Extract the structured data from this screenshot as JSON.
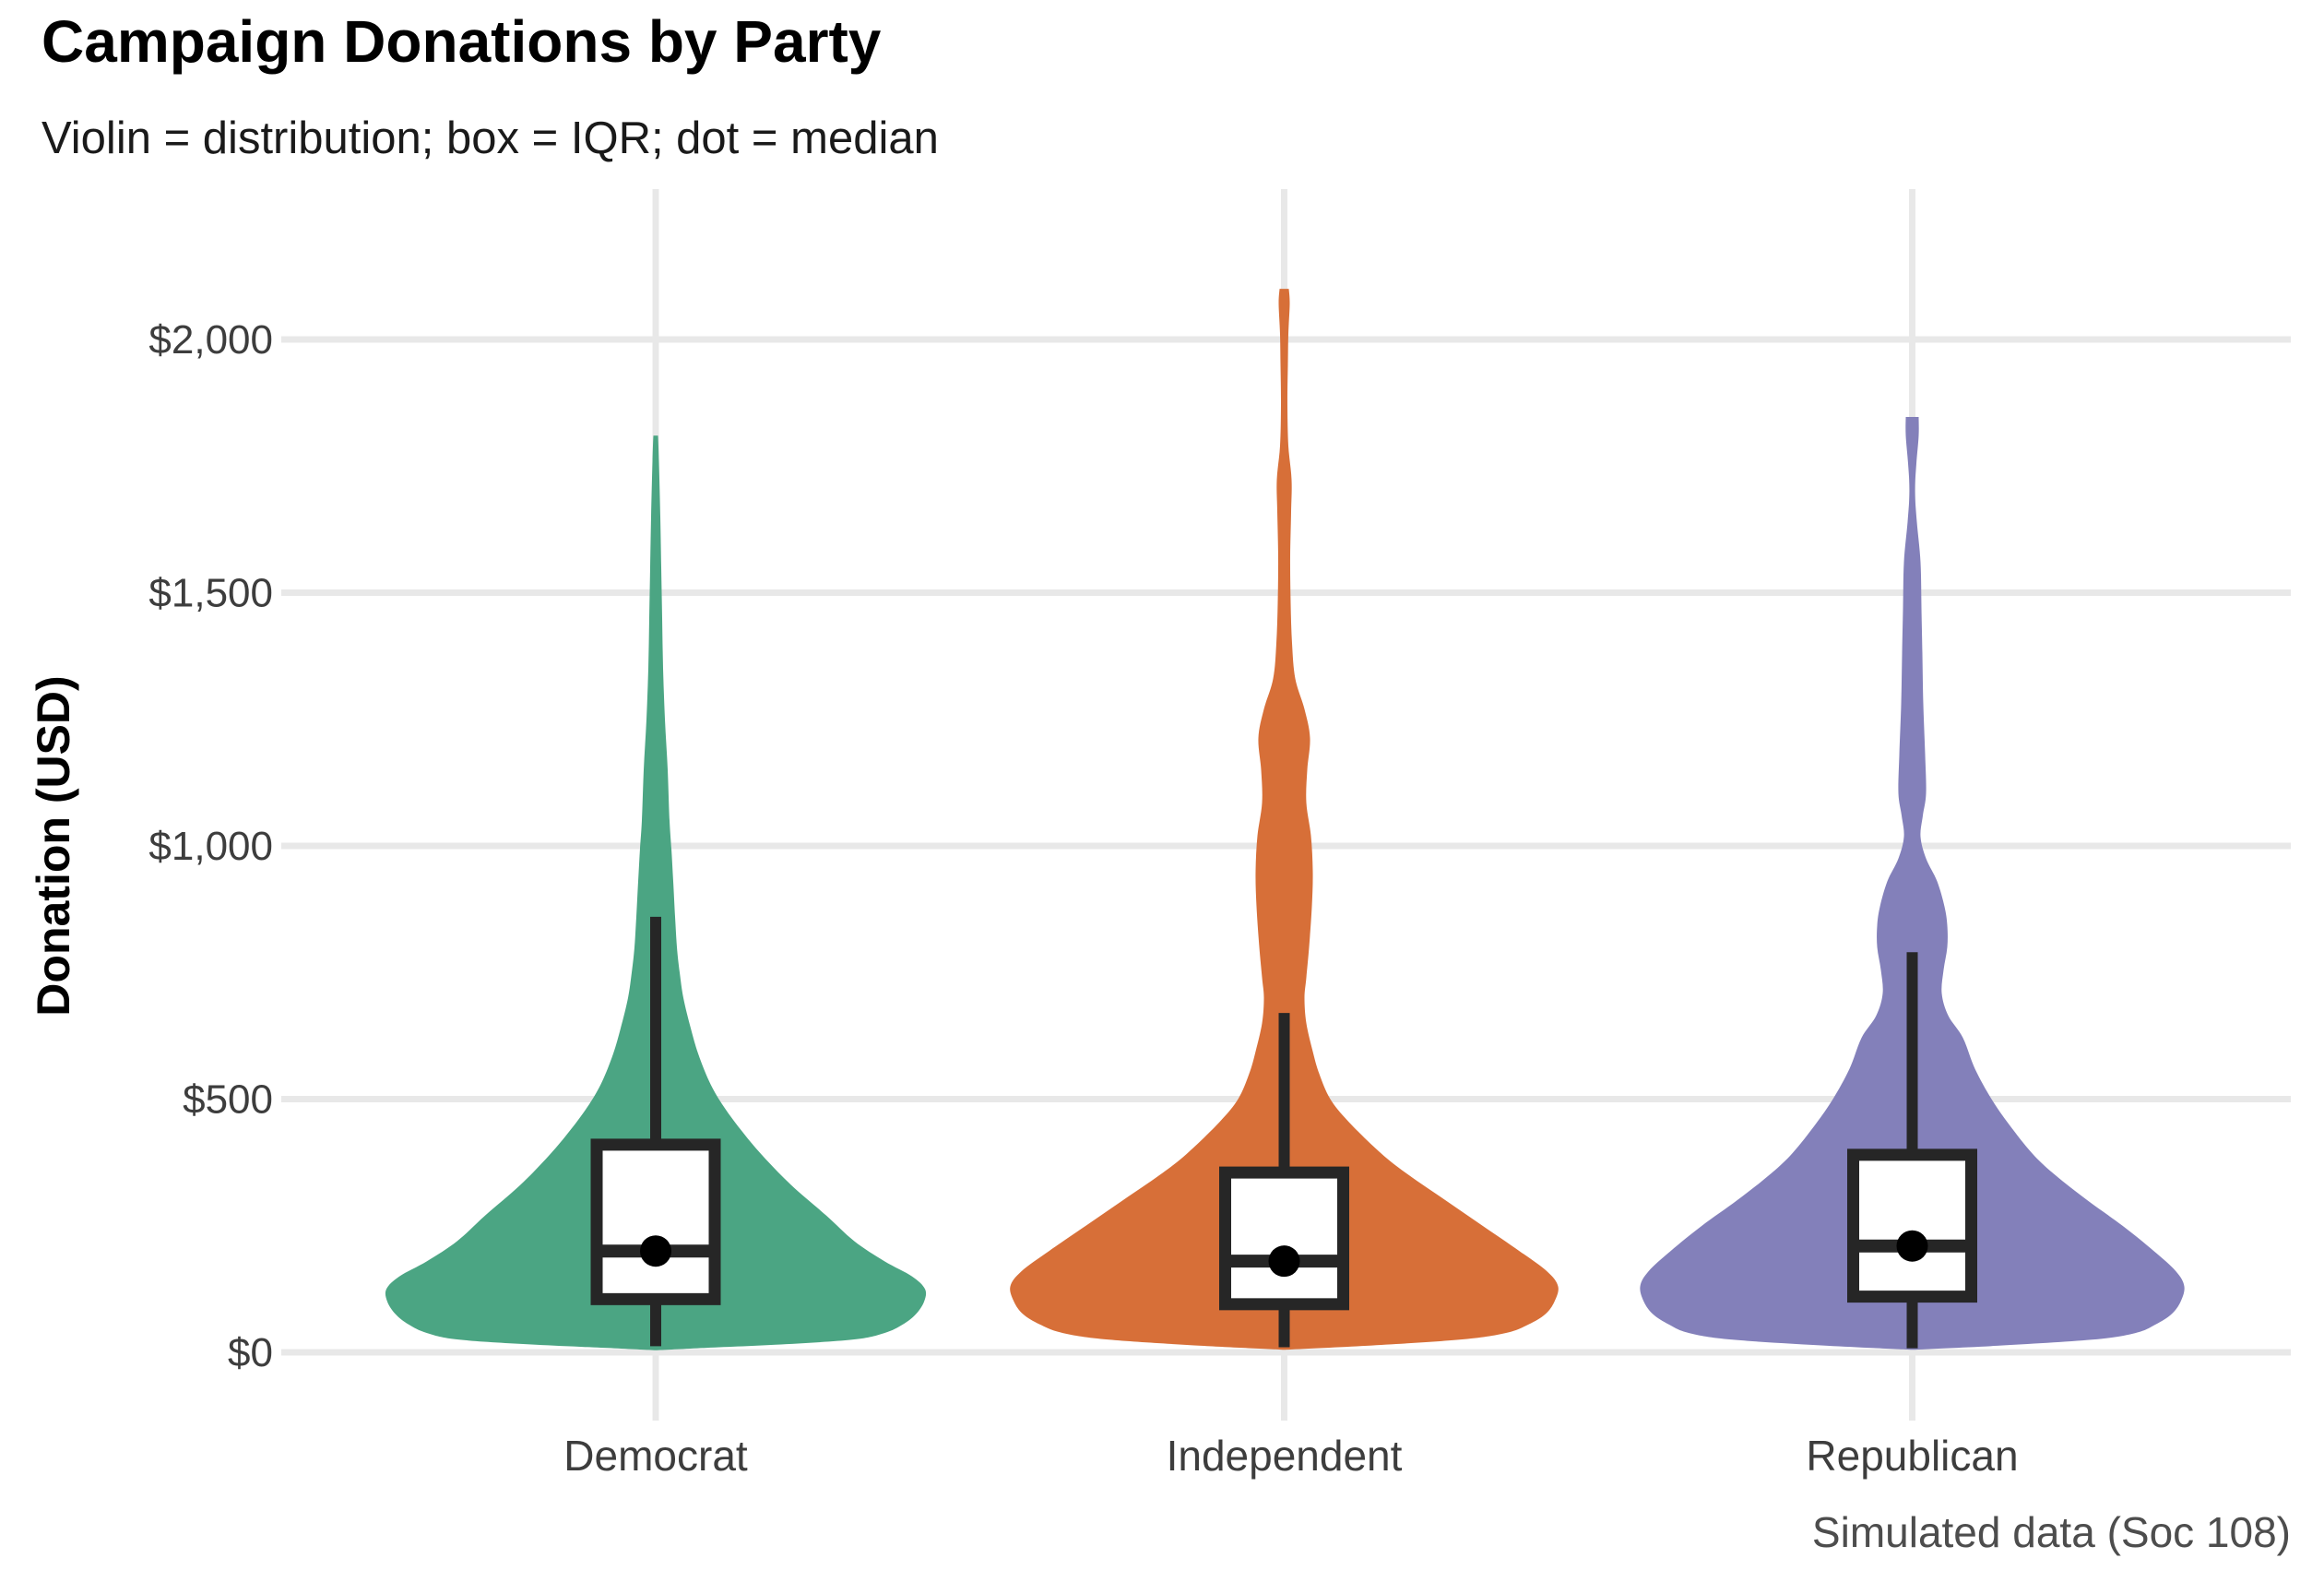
{
  "chart_data": {
    "type": "violin",
    "title": "Campaign Donations by Party",
    "subtitle": "Violin = distribution; box = IQR; dot = median",
    "caption": "Simulated data (Soc 108)",
    "xlabel": "",
    "ylabel": "Donation (USD)",
    "ylim": [
      0,
      2150
    ],
    "grid": "major gridlines only, light gray, no axis lines or tick marks",
    "legend": "none",
    "y_ticks": [
      {
        "value": 0,
        "label": "$0"
      },
      {
        "value": 500,
        "label": "$500"
      },
      {
        "value": 1000,
        "label": "$1,000"
      },
      {
        "value": 1500,
        "label": "$1,500"
      },
      {
        "value": 2000,
        "label": "$2,000"
      }
    ],
    "categories": [
      "Democrat",
      "Independent",
      "Republican"
    ],
    "colors": {
      "grid": "#e8e8e8",
      "box_stroke": "#262626",
      "box_fill": "#ffffff",
      "median_dot": "#000000",
      "tick_text": "#3d3d3d"
    },
    "profile_units": "[donation_usd, violin_half_width_px]",
    "series": [
      {
        "name": "Democrat",
        "color": "#4BA583",
        "stats": {
          "median": 200,
          "q1": 105,
          "q3": 410,
          "whisker_low": 12,
          "whisker_high": 860,
          "violin_min": 4,
          "violin_max": 1810
        },
        "profile": [
          [
            1810,
            2.5
          ],
          [
            1760,
            3.5
          ],
          [
            1650,
            5
          ],
          [
            1550,
            6
          ],
          [
            1450,
            7
          ],
          [
            1350,
            8
          ],
          [
            1250,
            10
          ],
          [
            1150,
            13
          ],
          [
            1050,
            15
          ],
          [
            995,
            17
          ],
          [
            930,
            19
          ],
          [
            860,
            21
          ],
          [
            800,
            23
          ],
          [
            750,
            26
          ],
          [
            700,
            30
          ],
          [
            640,
            38
          ],
          [
            590,
            46
          ],
          [
            535,
            58
          ],
          [
            490,
            72
          ],
          [
            440,
            92
          ],
          [
            390,
            115
          ],
          [
            330,
            147
          ],
          [
            270,
            185
          ],
          [
            220,
            215
          ],
          [
            180,
            248
          ],
          [
            150,
            278
          ],
          [
            125,
            292
          ],
          [
            100,
            291
          ],
          [
            75,
            282
          ],
          [
            55,
            268
          ],
          [
            38,
            248
          ],
          [
            25,
            213
          ],
          [
            15,
            130
          ],
          [
            8,
            45
          ],
          [
            4,
            0
          ]
        ]
      },
      {
        "name": "Independent",
        "color": "#D76F38",
        "stats": {
          "median": 180,
          "q1": 95,
          "q3": 355,
          "whisker_low": 10,
          "whisker_high": 670,
          "violin_min": 5,
          "violin_max": 2100
        },
        "profile": [
          [
            2100,
            5
          ],
          [
            2070,
            6
          ],
          [
            2010,
            4.5
          ],
          [
            1950,
            4
          ],
          [
            1870,
            3.5
          ],
          [
            1790,
            4.5
          ],
          [
            1723,
            8
          ],
          [
            1660,
            7.5
          ],
          [
            1570,
            6.5
          ],
          [
            1480,
            7
          ],
          [
            1400,
            8.5
          ],
          [
            1330,
            12
          ],
          [
            1270,
            22
          ],
          [
            1213,
            28
          ],
          [
            1150,
            25
          ],
          [
            1085,
            24
          ],
          [
            1020,
            29
          ],
          [
            950,
            31
          ],
          [
            880,
            30
          ],
          [
            800,
            27
          ],
          [
            740,
            24
          ],
          [
            700,
            22
          ],
          [
            650,
            24
          ],
          [
            594,
            31
          ],
          [
            550,
            38
          ],
          [
            500,
            50
          ],
          [
            455,
            70
          ],
          [
            393,
            105
          ],
          [
            350,
            135
          ],
          [
            300,
            175
          ],
          [
            250,
            215
          ],
          [
            200,
            255
          ],
          [
            160,
            285
          ],
          [
            130,
            297
          ],
          [
            100,
            293
          ],
          [
            75,
            283
          ],
          [
            55,
            265
          ],
          [
            38,
            240
          ],
          [
            25,
            190
          ],
          [
            13,
            90
          ],
          [
            5,
            0
          ]
        ]
      },
      {
        "name": "Republican",
        "color": "#8380BA",
        "stats": {
          "median": 210,
          "q1": 110,
          "q3": 390,
          "whisker_low": 8,
          "whisker_high": 790,
          "violin_min": 5,
          "violin_max": 1847
        },
        "profile": [
          [
            1847,
            7
          ],
          [
            1810,
            7
          ],
          [
            1755,
            4.5
          ],
          [
            1700,
            3
          ],
          [
            1640,
            5
          ],
          [
            1560,
            9
          ],
          [
            1470,
            10
          ],
          [
            1380,
            11
          ],
          [
            1280,
            12
          ],
          [
            1180,
            14
          ],
          [
            1104,
            15
          ],
          [
            1060,
            11.5
          ],
          [
            1018,
            9
          ],
          [
            975,
            15
          ],
          [
            930,
            27
          ],
          [
            880,
            35
          ],
          [
            843,
            38
          ],
          [
            800,
            38
          ],
          [
            755,
            34
          ],
          [
            709,
            32
          ],
          [
            665,
            39
          ],
          [
            621,
            55
          ],
          [
            560,
            68
          ],
          [
            500,
            86
          ],
          [
            450,
            105
          ],
          [
            393,
            130
          ],
          [
            350,
            155
          ],
          [
            300,
            190
          ],
          [
            250,
            228
          ],
          [
            200,
            262
          ],
          [
            160,
            286
          ],
          [
            130,
            295
          ],
          [
            100,
            291
          ],
          [
            75,
            281
          ],
          [
            55,
            264
          ],
          [
            38,
            242
          ],
          [
            25,
            195
          ],
          [
            13,
            92
          ],
          [
            5,
            0
          ]
        ]
      }
    ]
  }
}
